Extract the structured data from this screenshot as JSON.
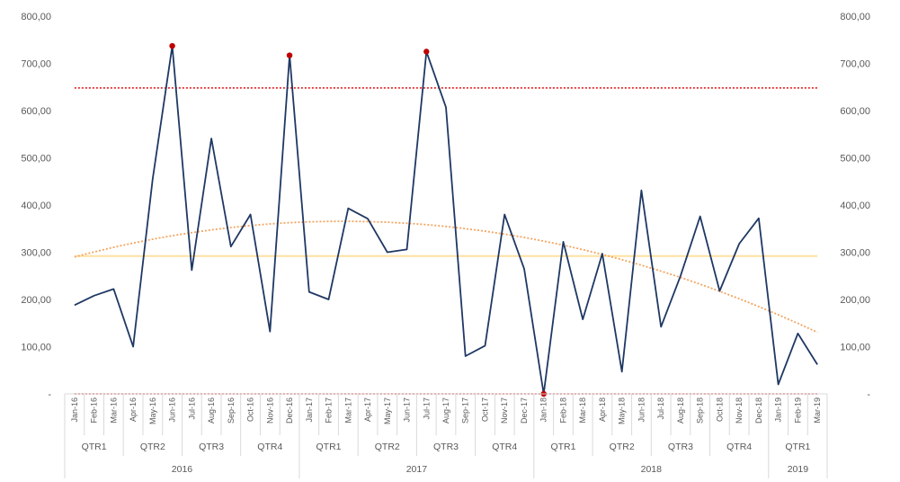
{
  "chart_data": {
    "type": "line",
    "ylim": [
      0,
      800
    ],
    "yticks": [
      "-",
      "100,00",
      "200,00",
      "300,00",
      "400,00",
      "500,00",
      "600,00",
      "700,00",
      "800,00"
    ],
    "categories": [
      "Jan-16",
      "Feb-16",
      "Mar-16",
      "Apr-16",
      "May-16",
      "Jun-16",
      "Jul-16",
      "Aug-16",
      "Sep-16",
      "Oct-16",
      "Nov-16",
      "Dec-16",
      "Jan-17",
      "Feb-17",
      "Mar-17",
      "Apr-17",
      "May-17",
      "Jun-17",
      "Jul-17",
      "Aug-17",
      "Sep-17",
      "Oct-17",
      "Nov-17",
      "Dec-17",
      "Jan-18",
      "Feb-18",
      "Mar-18",
      "Apr-18",
      "May-18",
      "Jun-18",
      "Jul-18",
      "Aug-18",
      "Sep-18",
      "Oct-18",
      "Nov-18",
      "Dec-18",
      "Jan-19",
      "Feb-19",
      "Mar-19"
    ],
    "quarters": [
      {
        "label": "QTR1",
        "span": 3
      },
      {
        "label": "QTR2",
        "span": 3
      },
      {
        "label": "QTR3",
        "span": 3
      },
      {
        "label": "QTR4",
        "span": 3
      },
      {
        "label": "QTR1",
        "span": 3
      },
      {
        "label": "QTR2",
        "span": 3
      },
      {
        "label": "QTR3",
        "span": 3
      },
      {
        "label": "QTR4",
        "span": 3
      },
      {
        "label": "QTR1",
        "span": 3
      },
      {
        "label": "QTR2",
        "span": 3
      },
      {
        "label": "QTR3",
        "span": 3
      },
      {
        "label": "QTR4",
        "span": 3
      },
      {
        "label": "QTR1",
        "span": 3
      }
    ],
    "years": [
      {
        "label": "2016",
        "span": 12
      },
      {
        "label": "2017",
        "span": 12
      },
      {
        "label": "2018",
        "span": 12
      },
      {
        "label": "2019",
        "span": 3
      }
    ],
    "series": [
      {
        "role": "data",
        "color": "#1f3864",
        "values": [
          188,
          208,
          222,
          100,
          455,
          737,
          262,
          541,
          312,
          380,
          132,
          717,
          216,
          200,
          393,
          371,
          300,
          306,
          725,
          607,
          80,
          102,
          380,
          265,
          0,
          322,
          158,
          297,
          47,
          431,
          142,
          250,
          376,
          218,
          318,
          372,
          20,
          128,
          62
        ]
      },
      {
        "role": "mean",
        "color": "#ffe0a0",
        "value": 292
      },
      {
        "role": "upper-control-limit",
        "color": "#e02020",
        "value": 648
      },
      {
        "role": "lower-control-limit",
        "color": "#e02020",
        "value": 0
      },
      {
        "role": "trend",
        "color": "#f4a460",
        "coefficients": [
          290,
          11,
          -0.4
        ]
      }
    ],
    "outlier_marker_color": "#c00000",
    "outlier_indices": [
      5,
      11,
      18,
      24
    ],
    "grid": false,
    "legend": "none"
  }
}
